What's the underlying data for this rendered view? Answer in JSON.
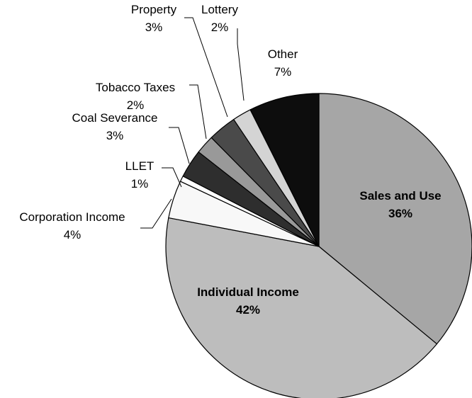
{
  "chart_data": {
    "type": "pie",
    "start_angle_deg": 0,
    "direction": "clockwise",
    "slices": [
      {
        "label": "Sales and Use",
        "value": 36,
        "value_label": "36%",
        "color": "#a6a6a6",
        "bold": true
      },
      {
        "label": "Individual Income",
        "value": 42,
        "value_label": "42%",
        "color": "#bdbdbd",
        "bold": true
      },
      {
        "label": "Corporation Income",
        "value": 4,
        "value_label": "4%",
        "color": "#f8f8f8",
        "bold": false
      },
      {
        "label": "LLET",
        "value": 0.6,
        "value_label": "1%",
        "color": "#ffffff",
        "bold": false
      },
      {
        "label": "Coal Severance",
        "value": 3,
        "value_label": "3%",
        "color": "#2e2e2e",
        "bold": false
      },
      {
        "label": "Tobacco Taxes",
        "value": 2,
        "value_label": "2%",
        "color": "#999999",
        "bold": false
      },
      {
        "label": "Property",
        "value": 3,
        "value_label": "3%",
        "color": "#4a4a4a",
        "bold": false
      },
      {
        "label": "Lottery",
        "value": 2,
        "value_label": "2%",
        "color": "#d4d4d4",
        "bold": false
      },
      {
        "label": "Other",
        "value": 7.4,
        "value_label": "7%",
        "color": "#0d0d0d",
        "bold": false
      }
    ]
  }
}
